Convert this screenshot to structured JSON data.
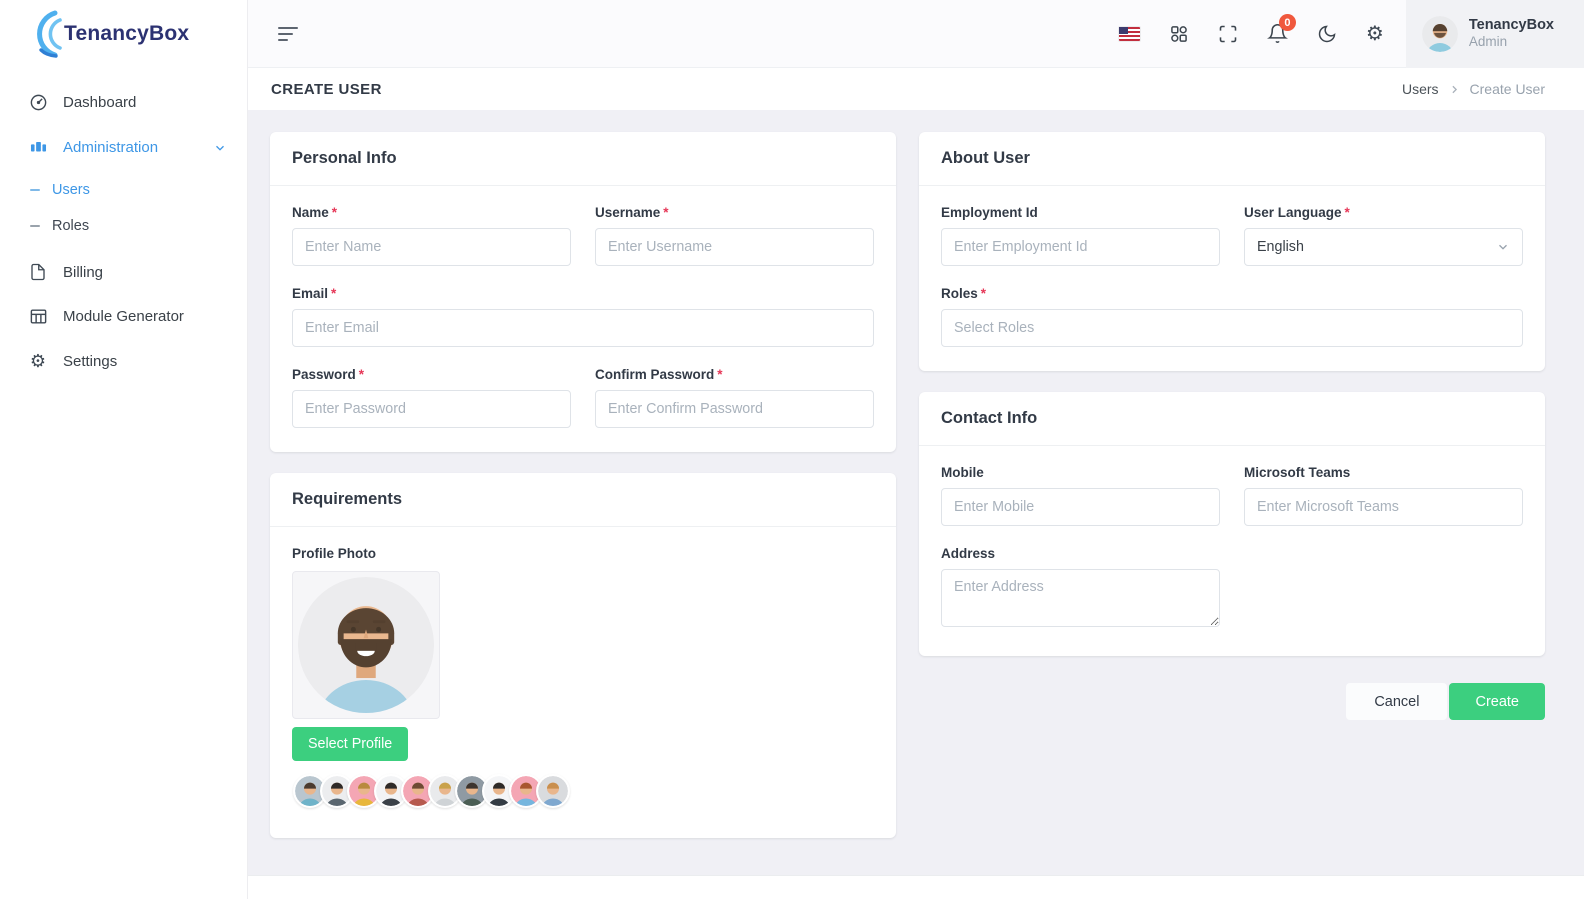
{
  "brand": {
    "name": "TenancyBox"
  },
  "theme": {
    "accent": "#3e97e6",
    "success": "#3ccf7f",
    "badge": "#f0583d",
    "brand_text": "#2c3272"
  },
  "ui": {
    "required_marker": "*"
  },
  "sidebar": {
    "items": [
      {
        "label": "Dashboard",
        "icon": "gauge-icon"
      },
      {
        "label": "Administration",
        "icon": "building-icon",
        "expanded": true,
        "children": [
          {
            "label": "Users",
            "active": true
          },
          {
            "label": "Roles",
            "active": false
          }
        ]
      },
      {
        "label": "Billing",
        "icon": "file-icon"
      },
      {
        "label": "Module Generator",
        "icon": "table-icon"
      },
      {
        "label": "Settings",
        "icon": "gear-icon"
      }
    ]
  },
  "topbar": {
    "notification_count": "0",
    "user": {
      "name": "TenancyBox",
      "role": "Admin"
    }
  },
  "page": {
    "title": "CREATE USER",
    "breadcrumb": {
      "parent": "Users",
      "current": "Create User"
    }
  },
  "cards": {
    "personal_info": {
      "title": "Personal Info",
      "fields": {
        "name": {
          "label": "Name",
          "required": true,
          "placeholder": "Enter Name"
        },
        "username": {
          "label": "Username",
          "required": true,
          "placeholder": "Enter Username"
        },
        "email": {
          "label": "Email",
          "required": true,
          "placeholder": "Enter Email"
        },
        "password": {
          "label": "Password",
          "required": true,
          "placeholder": "Enter Password"
        },
        "confirm_password": {
          "label": "Confirm Password",
          "required": true,
          "placeholder": "Enter Confirm Password"
        }
      }
    },
    "about_user": {
      "title": "About User",
      "fields": {
        "employment_id": {
          "label": "Employment Id",
          "required": false,
          "placeholder": "Enter Employment Id"
        },
        "user_language": {
          "label": "User Language",
          "required": true,
          "value": "English"
        },
        "roles": {
          "label": "Roles",
          "required": true,
          "placeholder": "Select Roles"
        }
      }
    },
    "contact_info": {
      "title": "Contact Info",
      "fields": {
        "mobile": {
          "label": "Mobile",
          "required": false,
          "placeholder": "Enter Mobile"
        },
        "microsoft_teams": {
          "label": "Microsoft Teams",
          "required": false,
          "placeholder": "Enter Microsoft Teams"
        },
        "address": {
          "label": "Address",
          "required": false,
          "placeholder": "Enter Address"
        }
      }
    },
    "requirements": {
      "title": "Requirements",
      "profile_photo_label": "Profile Photo",
      "select_profile_label": "Select Profile",
      "avatars": [
        {
          "bg": "#b9c6cf",
          "hair": "#4a3b2f",
          "shirt": "#6fb3c9"
        },
        {
          "bg": "#ecedef",
          "hair": "#2e2a28",
          "shirt": "#5b6770"
        },
        {
          "bg": "#f4a6b4",
          "hair": "#b98a3e",
          "shirt": "#e8b73c"
        },
        {
          "bg": "#f2f3f5",
          "hair": "#2f2b29",
          "shirt": "#3b4148"
        },
        {
          "bg": "#f4a6b4",
          "hair": "#6e4a33",
          "shirt": "#b65a4e"
        },
        {
          "bg": "#e9eaec",
          "hair": "#c9a24b",
          "shirt": "#cfd3d6"
        },
        {
          "bg": "#8f9aa3",
          "hair": "#3c342e",
          "shirt": "#4b5e54"
        },
        {
          "bg": "#f4f5f7",
          "hair": "#2f2b29",
          "shirt": "#343c44"
        },
        {
          "bg": "#f4a6b4",
          "hair": "#a8572f",
          "shirt": "#76b6de"
        },
        {
          "bg": "#d9dbde",
          "hair": "#c98f4e",
          "shirt": "#7fa8cf"
        }
      ]
    },
    "actions": {
      "cancel_label": "Cancel",
      "create_label": "Create"
    }
  }
}
